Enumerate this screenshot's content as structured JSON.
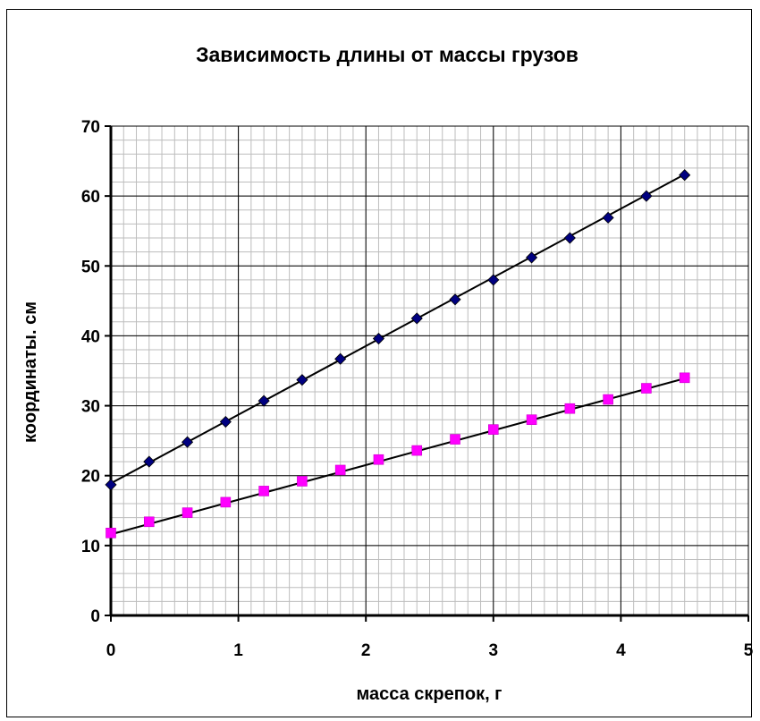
{
  "chart_data": {
    "type": "scatter",
    "title": "Зависимость длины от массы грузов",
    "xlabel": "масса скрепок, г",
    "ylabel": "координаты. см",
    "xlim": [
      0,
      5
    ],
    "ylim": [
      0,
      70
    ],
    "x_ticks": [
      "0",
      "1",
      "2",
      "3",
      "4",
      "5"
    ],
    "y_ticks": [
      "0",
      "10",
      "20",
      "30",
      "40",
      "50",
      "60",
      "70"
    ],
    "grid": true,
    "series": [
      {
        "color": "#000080",
        "marker": "diamond",
        "x": [
          0,
          0.3,
          0.6,
          0.9,
          1.2,
          1.5,
          1.8,
          2.1,
          2.4,
          2.7,
          3.0,
          3.3,
          3.6,
          3.9,
          4.2,
          4.5
        ],
        "y": [
          18.7,
          22.0,
          24.8,
          27.7,
          30.7,
          33.7,
          36.7,
          39.6,
          42.5,
          45.2,
          48.0,
          51.2,
          54.0,
          56.9,
          60.0,
          63.0
        ],
        "trendline": [
          18.9,
          63.1
        ]
      },
      {
        "color": "#ff00ff",
        "marker": "square",
        "x": [
          0,
          0.3,
          0.6,
          0.9,
          1.2,
          1.5,
          1.8,
          2.1,
          2.4,
          2.7,
          3.0,
          3.3,
          3.6,
          3.9,
          4.2,
          4.5
        ],
        "y": [
          11.8,
          13.4,
          14.7,
          16.2,
          17.8,
          19.2,
          20.8,
          22.3,
          23.6,
          25.2,
          26.6,
          28.0,
          29.6,
          30.9,
          32.5,
          34.0
        ],
        "trendline": [
          11.6,
          33.9
        ]
      }
    ]
  }
}
